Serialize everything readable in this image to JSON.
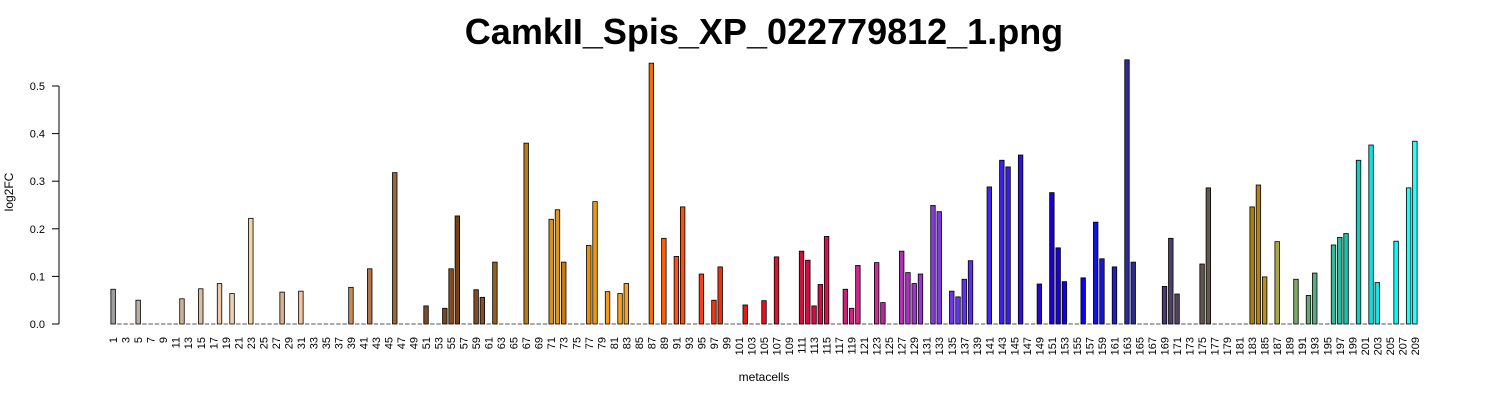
{
  "chart_data": {
    "type": "bar",
    "title": "CamkII_Spis_XP_022779812_1.png",
    "xlabel": "metacells",
    "ylabel": "log2FC",
    "ylim": [
      0,
      0.56
    ],
    "yticks": [
      "0.0",
      "0.1",
      "0.2",
      "0.3",
      "0.4",
      "0.5"
    ],
    "ytick_values": [
      0,
      0.1,
      0.2,
      0.3,
      0.4,
      0.5
    ],
    "categories": [
      "1",
      "2",
      "3",
      "4",
      "5",
      "6",
      "7",
      "8",
      "9",
      "10",
      "11",
      "12",
      "13",
      "14",
      "15",
      "16",
      "17",
      "18",
      "19",
      "20",
      "21",
      "22",
      "23",
      "24",
      "25",
      "26",
      "27",
      "28",
      "29",
      "30",
      "31",
      "32",
      "33",
      "34",
      "35",
      "36",
      "37",
      "38",
      "39",
      "40",
      "41",
      "42",
      "43",
      "44",
      "45",
      "46",
      "47",
      "48",
      "49",
      "50",
      "51",
      "52",
      "53",
      "54",
      "55",
      "56",
      "57",
      "58",
      "59",
      "60",
      "61",
      "62",
      "63",
      "64",
      "65",
      "66",
      "67",
      "68",
      "69",
      "70",
      "71",
      "72",
      "73",
      "74",
      "75",
      "76",
      "77",
      "78",
      "79",
      "80",
      "81",
      "82",
      "83",
      "84",
      "85",
      "86",
      "87",
      "88",
      "89",
      "90",
      "91",
      "92",
      "93",
      "94",
      "95",
      "96",
      "97",
      "98",
      "99",
      "100",
      "101",
      "102",
      "103",
      "104",
      "105",
      "106",
      "107",
      "108",
      "109",
      "110",
      "111",
      "112",
      "113",
      "114",
      "115",
      "116",
      "117",
      "118",
      "119",
      "120",
      "121",
      "122",
      "123",
      "124",
      "125",
      "126",
      "127",
      "128",
      "129",
      "130",
      "131",
      "132",
      "133",
      "134",
      "135",
      "136",
      "137",
      "138",
      "139",
      "140",
      "141",
      "142",
      "143",
      "144",
      "145",
      "146",
      "147",
      "148",
      "149",
      "150",
      "151",
      "152",
      "153",
      "154",
      "155",
      "156",
      "157",
      "158",
      "159",
      "160",
      "161",
      "162",
      "163",
      "164",
      "165",
      "166",
      "167",
      "168",
      "169",
      "170",
      "171",
      "172",
      "173",
      "174",
      "175",
      "176",
      "177",
      "178",
      "179",
      "180",
      "181",
      "182",
      "183",
      "184",
      "185",
      "186",
      "187",
      "188",
      "189",
      "190",
      "191",
      "192",
      "193",
      "194",
      "195",
      "196",
      "197",
      "198",
      "199",
      "200",
      "201",
      "202",
      "203",
      "204",
      "205",
      "206",
      "207",
      "208",
      "209"
    ],
    "xtick_labels": [
      "1",
      "3",
      "5",
      "7",
      "9",
      "11",
      "13",
      "15",
      "17",
      "19",
      "21",
      "23",
      "25",
      "27",
      "29",
      "31",
      "33",
      "35",
      "37",
      "39",
      "41",
      "43",
      "45",
      "47",
      "49",
      "51",
      "53",
      "55",
      "57",
      "59",
      "61",
      "63",
      "65",
      "67",
      "69",
      "71",
      "73",
      "75",
      "77",
      "79",
      "81",
      "83",
      "85",
      "87",
      "89",
      "91",
      "93",
      "95",
      "97",
      "99",
      "101",
      "103",
      "105",
      "107",
      "109",
      "111",
      "113",
      "115",
      "117",
      "119",
      "121",
      "123",
      "125",
      "127",
      "129",
      "131",
      "133",
      "135",
      "137",
      "139",
      "141",
      "143",
      "145",
      "147",
      "149",
      "151",
      "153",
      "155",
      "157",
      "159",
      "161",
      "163",
      "165",
      "167",
      "169",
      "171",
      "173",
      "175",
      "177",
      "179",
      "181",
      "183",
      "185",
      "187",
      "189",
      "191",
      "193",
      "195",
      "197",
      "199",
      "201",
      "203",
      "205",
      "207",
      "209"
    ],
    "values": [
      0.073,
      0,
      0,
      0,
      0.05,
      0,
      0,
      0,
      0,
      0,
      0,
      0.053,
      0,
      0,
      0.074,
      0,
      0,
      0.085,
      0,
      0.064,
      0,
      0,
      0.222,
      0,
      0,
      0,
      0,
      0.067,
      0,
      0,
      0.069,
      0,
      0,
      0,
      0,
      0,
      0,
      0,
      0.077,
      0,
      0,
      0.116,
      0,
      0,
      0,
      0.318,
      0,
      0,
      0,
      0,
      0.038,
      0,
      0,
      0.033,
      0.116,
      0.227,
      0,
      0,
      0.072,
      0.056,
      0,
      0.13,
      0,
      0,
      0,
      0,
      0.38,
      0,
      0,
      0,
      0.22,
      0.24,
      0.13,
      0,
      0,
      0,
      0.165,
      0.257,
      0,
      0.068,
      0,
      0.064,
      0.085,
      0,
      0,
      0,
      0.548,
      0,
      0.18,
      0,
      0.142,
      0.246,
      0,
      0,
      0.105,
      0,
      0.05,
      0.12,
      0,
      0,
      0,
      0.04,
      0,
      0,
      0.049,
      0,
      0.141,
      0,
      0,
      0,
      0.153,
      0.134,
      0.038,
      0.083,
      0.184,
      0,
      0,
      0.073,
      0.033,
      0.123,
      0,
      0,
      0.129,
      0.045,
      0,
      0,
      0.153,
      0.108,
      0.085,
      0.105,
      0,
      0.249,
      0.236,
      0,
      0.069,
      0.057,
      0.094,
      0.133,
      0,
      0,
      0.288,
      0,
      0.344,
      0.33,
      0,
      0.355,
      0,
      0,
      0.084,
      0,
      0.276,
      0.16,
      0.089,
      0,
      0,
      0.097,
      0,
      0.214,
      0.137,
      0,
      0.12,
      0,
      0.555,
      0.13,
      0,
      0,
      0,
      0,
      0.079,
      0.18,
      0.063,
      0,
      0,
      0,
      0.126,
      0.286,
      0,
      0,
      0,
      0,
      0,
      0,
      0.246,
      0.292,
      0.099,
      0,
      0.173,
      0,
      0,
      0.094,
      0,
      0.06,
      0.107,
      0,
      0,
      0.166,
      0.182,
      0.19,
      0,
      0.344,
      0,
      0.376,
      0.087,
      0,
      0,
      0.174,
      0,
      0.286,
      0.384
    ],
    "colors": [
      "#9e9e9e",
      "#a7a7a7",
      "#b2b2b2",
      "#bbbbbb",
      "#b9ada2",
      "#c0b2a3",
      "#c6b6a4",
      "#ccbba6",
      "#d2bfa7",
      "#d8c3a8",
      "#d9c2a6",
      "#cfb394",
      "#d3b797",
      "#d7bb9b",
      "#dbbf9f",
      "#dfc3a3",
      "#e3c7a6",
      "#e7cba9",
      "#ebcfac",
      "#efd3af",
      "#f2d6b1",
      "#f5d9b3",
      "#f5d3a2",
      "#efcca0",
      "#e9c59c",
      "#e3be97",
      "#ddb792",
      "#d7b08d",
      "#d1a989",
      "#cba284",
      "#f5c39b",
      "#efb98e",
      "#e9af82",
      "#e3a576",
      "#dd9b6a",
      "#d7915e",
      "#d18752",
      "#cb7d46",
      "#c9895b",
      "#c28357",
      "#bb7c53",
      "#b4764f",
      "#ad704b",
      "#a66947",
      "#9f6343",
      "#a0643d",
      "#98593a",
      "#905037",
      "#884834",
      "#804031",
      "#7c4c2a",
      "#7a4a22",
      "#784820",
      "#76461d",
      "#8a4b1a",
      "#7a3f11",
      "#74400f",
      "#7a4820",
      "#7c4d27",
      "#81522b",
      "#8a5a22",
      "#925f1e",
      "#9a6619",
      "#a26d15",
      "#aa7410",
      "#b27b0c",
      "#b87a1a",
      "#c07f1b",
      "#c8851c",
      "#d08b1d",
      "#d8901e",
      "#e0961f",
      "#c87a10",
      "#d0800f",
      "#d8860e",
      "#e08c0d",
      "#e8920c",
      "#f09810",
      "#f29a14",
      "#f49c18",
      "#f6a01c",
      "#f8a420",
      "#f8a420",
      "#fa8010",
      "#fb740c",
      "#fc6808",
      "#f46a05",
      "#f56508",
      "#f6600b",
      "#f75b0e",
      "#f85611",
      "#f95114",
      "#f24a14",
      "#f34518",
      "#f4401c",
      "#f53b20",
      "#e93818",
      "#ea3214",
      "#eb2c10",
      "#ec260c",
      "#e4200f",
      "#e51c14",
      "#e61818",
      "#e7141c",
      "#e81020",
      "#e90c24",
      "#e01430",
      "#d81028",
      "#d00c20",
      "#cc1430",
      "#d0103a",
      "#d20e40",
      "#d40c46",
      "#d60a4c",
      "#d8144c",
      "#cc1f60",
      "#c82070",
      "#cc2278",
      "#d02480",
      "#d42688",
      "#c42a88",
      "#c82c90",
      "#cc2e98",
      "#b02aa0",
      "#b42ca8",
      "#b82eb0",
      "#b030b8",
      "#a832c0",
      "#a034c8",
      "#9836d0",
      "#9038d8",
      "#8838e0",
      "#8038e4",
      "#7838e8",
      "#7036ec",
      "#6834f0",
      "#6032f0",
      "#5830f2",
      "#502ef4",
      "#482cf6",
      "#4428f0",
      "#4024ec",
      "#3c20e8",
      "#381ce4",
      "#3418e0",
      "#3014dc",
      "#2c10d8",
      "#280cd4",
      "#2408d0",
      "#2004cc",
      "#1c00c8",
      "#1800d8",
      "#1400e4",
      "#1000f0",
      "#0c00f8",
      "#0800fa",
      "#1010e0",
      "#1414d8",
      "#1818d0",
      "#1c1cc8",
      "#2020c0",
      "#2424b8",
      "#2a2a9c",
      "#302a8c",
      "#382c80",
      "#3c3078",
      "#403470",
      "#44386c",
      "#483c68",
      "#4c4064",
      "#504460",
      "#54485c",
      "#584c58",
      "#5c5054",
      "#605450",
      "#64584c",
      "#705a40",
      "#7a6038",
      "#846630",
      "#8e6c28",
      "#987220",
      "#a27818",
      "#ac7e10",
      "#b6840c",
      "#bc9018",
      "#b4a02c",
      "#a8a848",
      "#9aa858",
      "#8ca860",
      "#7ea868",
      "#70a870",
      "#64aa78",
      "#58ae80",
      "#4cb288",
      "#40b690",
      "#34ba98",
      "#28bea0",
      "#1cc2a8",
      "#10c6b0",
      "#10cec0",
      "#10d6d0",
      "#10dedc",
      "#10e6e4",
      "#10eeec",
      "#10f6f4",
      "#10f8f8",
      "#18fafa",
      "#20fcfc",
      "#28ffff"
    ]
  }
}
